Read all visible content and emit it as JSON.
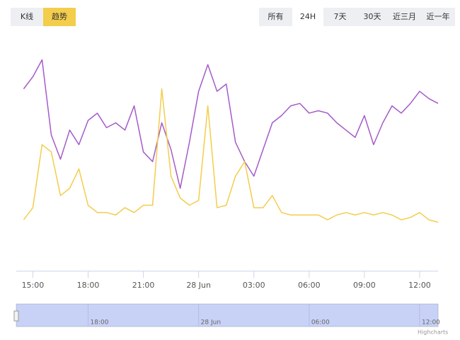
{
  "chart_data": {
    "type": "line",
    "x": [
      14.5,
      15,
      15.5,
      16,
      16.5,
      17,
      17.5,
      18,
      18.5,
      19,
      19.5,
      20,
      20.5,
      21,
      21.5,
      22,
      22.5,
      23,
      23.5,
      24,
      24.5,
      25,
      25.5,
      26,
      26.5,
      27,
      27.5,
      28,
      28.5,
      29,
      29.5,
      30,
      30.5,
      31,
      31.5,
      32,
      32.5,
      33,
      33.5,
      34,
      34.5,
      35,
      35.5,
      36,
      36.5,
      37
    ],
    "series": [
      {
        "color": "#a45bc9",
        "values": [
          75,
          80,
          87,
          56,
          46,
          58,
          52,
          62,
          65,
          59,
          61,
          58,
          68,
          49,
          45,
          61,
          50,
          34,
          53,
          74,
          85,
          74,
          77,
          53,
          45,
          39,
          50,
          61,
          64,
          68,
          69,
          65,
          66,
          65,
          61,
          58,
          55,
          64,
          52,
          61,
          68,
          65,
          69,
          74,
          71,
          69
        ]
      },
      {
        "color": "#f3cd4c",
        "values": [
          21,
          26,
          52,
          49,
          31,
          34,
          42,
          27,
          24,
          24,
          23,
          26,
          24,
          27,
          27,
          75,
          39,
          30,
          27,
          29,
          68,
          26,
          27,
          39,
          45,
          26,
          26,
          31,
          24,
          23,
          23,
          23,
          23,
          21,
          23,
          24,
          23,
          24,
          23,
          24,
          23,
          21,
          22,
          24,
          21,
          20
        ]
      }
    ],
    "xlim": [
      14.1,
      37
    ],
    "ylim": [
      0,
      100
    ],
    "xticks": [
      {
        "value": 15,
        "label": "15:00"
      },
      {
        "value": 18,
        "label": "18:00"
      },
      {
        "value": 21,
        "label": "21:00"
      },
      {
        "value": 24,
        "label": "28 Jun"
      },
      {
        "value": 27,
        "label": "03:00"
      },
      {
        "value": 30,
        "label": "06:00"
      },
      {
        "value": 33,
        "label": "09:00"
      },
      {
        "value": 36,
        "label": "12:00"
      }
    ],
    "navigator_xticks": [
      {
        "value": 18,
        "label": "18:00"
      },
      {
        "value": 24,
        "label": "28 Jun"
      },
      {
        "value": 30,
        "label": "06:00"
      },
      {
        "value": 36,
        "label": "12:00"
      }
    ],
    "credits": "Highcharts",
    "buttons_left": [
      "K线",
      "趋势"
    ],
    "active_left": 1,
    "buttons_right": [
      "所有",
      "24H",
      "7天",
      "30天",
      "近三月",
      "近一年"
    ],
    "active_right": 1
  }
}
